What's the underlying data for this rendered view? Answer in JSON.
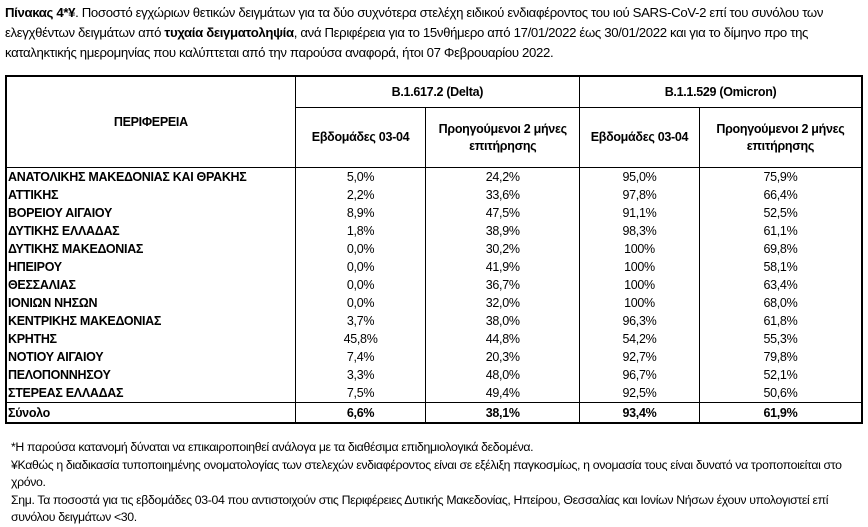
{
  "caption": {
    "label": "Πίνακας 4*¥",
    "text1": ". Ποσοστό εγχώριων θετικών δειγμάτων για τα δύο συχνότερα στελέχη ειδικού ενδιαφέροντος του ιού SARS-CoV-2 επί του συνόλου των ελεγχθέντων δειγμάτων από ",
    "bold": "τυχαία δειγματοληψία",
    "text2": ", ανά Περιφέρεια για το 15νθήμερο από 17/01/2022 έως 30/01/2022 και για το δίμηνο προ της καταληκτικής ημερομηνίας που καλύπτεται από την παρούσα αναφορά, ήτοι 07 Φεβρουαρίου 2022."
  },
  "table": {
    "region_header": "ΠΕΡΙΦΕΡΕΙΑ",
    "groups": [
      "B.1.617.2 (Delta)",
      "B.1.1.529 (Omicron)"
    ],
    "subheaders": [
      "Εβδομάδες 03-04",
      "Προηγούμενοι 2 μήνες επιτήρησης",
      "Εβδομάδες 03-04",
      "Προηγούμενοι 2 μήνες επιτήρησης"
    ],
    "rows": [
      {
        "region": "ΑΝΑΤΟΛΙΚΗΣ ΜΑΚΕΔΟΝΙΑΣ ΚΑΙ ΘΡΑΚΗΣ",
        "v": [
          "5,0%",
          "24,2%",
          "95,0%",
          "75,9%"
        ]
      },
      {
        "region": "ΑΤΤΙΚΗΣ",
        "v": [
          "2,2%",
          "33,6%",
          "97,8%",
          "66,4%"
        ]
      },
      {
        "region": "ΒΟΡΕΙΟΥ ΑΙΓΑΙΟΥ",
        "v": [
          "8,9%",
          "47,5%",
          "91,1%",
          "52,5%"
        ]
      },
      {
        "region": "ΔΥΤΙΚΗΣ ΕΛΛΑΔΑΣ",
        "v": [
          "1,8%",
          "38,9%",
          "98,3%",
          "61,1%"
        ]
      },
      {
        "region": "ΔΥΤΙΚΗΣ ΜΑΚΕΔΟΝΙΑΣ",
        "v": [
          "0,0%",
          "30,2%",
          "100%",
          "69,8%"
        ]
      },
      {
        "region": "ΗΠΕΙΡΟΥ",
        "v": [
          "0,0%",
          "41,9%",
          "100%",
          "58,1%"
        ]
      },
      {
        "region": "ΘΕΣΣΑΛΙΑΣ",
        "v": [
          "0,0%",
          "36,7%",
          "100%",
          "63,4%"
        ]
      },
      {
        "region": "ΙΟΝΙΩΝ ΝΗΣΩΝ",
        "v": [
          "0,0%",
          "32,0%",
          "100%",
          "68,0%"
        ]
      },
      {
        "region": "ΚΕΝΤΡΙΚΗΣ ΜΑΚΕΔΟΝΙΑΣ",
        "v": [
          "3,7%",
          "38,0%",
          "96,3%",
          "61,8%"
        ]
      },
      {
        "region": "ΚΡΗΤΗΣ",
        "v": [
          "45,8%",
          "44,8%",
          "54,2%",
          "55,3%"
        ]
      },
      {
        "region": "ΝΟΤΙΟΥ ΑΙΓΑΙΟΥ",
        "v": [
          "7,4%",
          "20,3%",
          "92,7%",
          "79,8%"
        ]
      },
      {
        "region": "ΠΕΛΟΠΟΝΝΗΣΟΥ",
        "v": [
          "3,3%",
          "48,0%",
          "96,7%",
          "52,1%"
        ]
      },
      {
        "region": "ΣΤΕΡΕΑΣ ΕΛΛΑΔΑΣ",
        "v": [
          "7,5%",
          "49,4%",
          "92,5%",
          "50,6%"
        ]
      }
    ],
    "total": {
      "region": "Σύνολο",
      "v": [
        "6,6%",
        "38,1%",
        "93,4%",
        "61,9%"
      ]
    }
  },
  "notes": [
    "*Η παρούσα κατανομή δύναται να επικαιροποιηθεί ανάλογα με τα διαθέσιμα επιδημιολογικά δεδομένα.",
    "¥Καθώς η διαδικασία τυποποιημένης ονοματολογίας των στελεχών ενδιαφέροντος είναι σε εξέλιξη παγκοσμίως, η ονομασία τους είναι δυνατό να τροποποιείται στο χρόνο.",
    "Σημ. Τα ποσοστά για τις εβδομάδες 03-04 που αντιστοιχούν στις Περιφέρειες Δυτικής Μακεδονίας, Ηπείρου, Θεσσαλίας και Ιονίων Νήσων έχουν υπολογιστεί επί συνόλου δειγμάτων <30."
  ]
}
